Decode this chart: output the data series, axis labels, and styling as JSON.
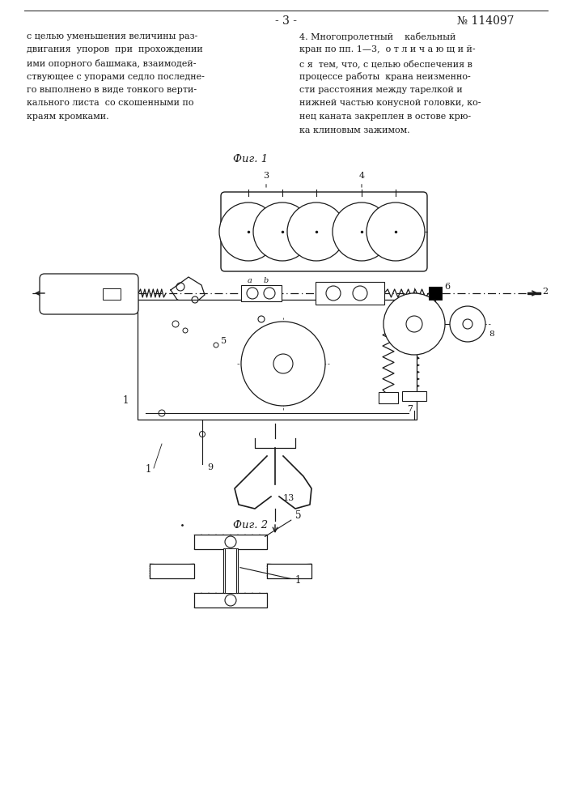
{
  "page_width": 7.07,
  "page_height": 10.0,
  "bg_color": "#ffffff",
  "header_dash": "- 3 -",
  "header_num": "№ 114097",
  "col1_lines": [
    "с целью уменьшения величины раз-",
    "двигания  упоров  при  прохождении",
    "ими опорного башмака, взаимодей-",
    "ствующее с упорами седло последне-",
    "го выполнено в виде тонкого верти-",
    "кального листа  со скошенными по",
    "краям кромками."
  ],
  "col2_lines": [
    "4. Многопролетный    кабельный",
    "кран по пп. 1—3,  о т л и ч а ю щ и й-",
    "с я  тем, что, с целью обеспечения в",
    "процессе работы  крана неизменно-",
    "сти расстояния между тарелкой и",
    "нижней частью конусной головки, ко-",
    "нец каната закреплен в остове крю-",
    "ка клиновым зажимом."
  ],
  "fig1_label": "Фиг. 1",
  "fig2_label": "Фиг. 2",
  "lc": "#1a1a1a",
  "tc": "#1a1a1a"
}
